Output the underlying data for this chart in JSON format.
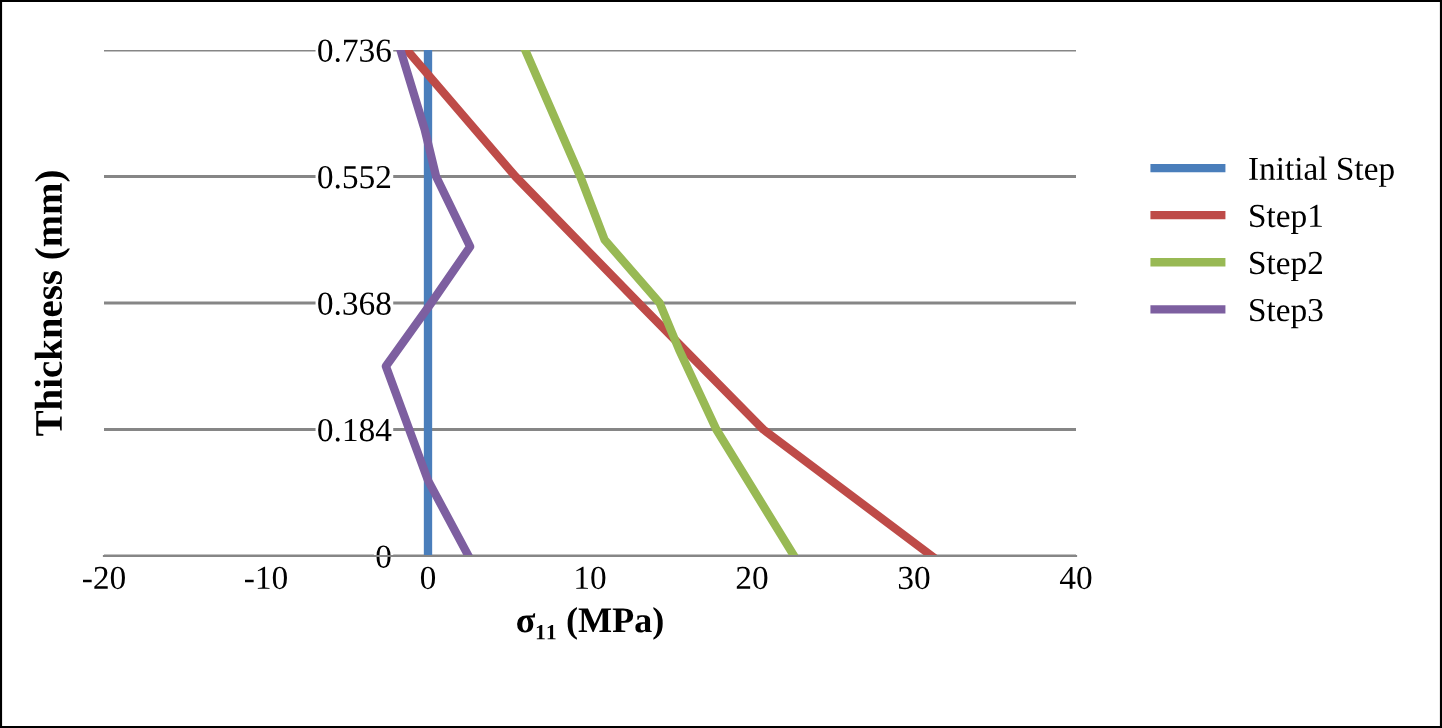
{
  "chart_data": {
    "type": "line",
    "xlabel": "σ₁₁ (MPa)",
    "ylabel": "Thickness (mm)",
    "xlim": [
      -20,
      40
    ],
    "xticks": [
      -20,
      -10,
      0,
      10,
      20,
      30,
      40
    ],
    "ylim": [
      0,
      0.736
    ],
    "yticks": [
      0,
      0.184,
      0.368,
      0.552,
      0.736
    ],
    "grid": "y",
    "legend": "right",
    "marker": "none",
    "line_style": "solid",
    "series": [
      {
        "name": "Initial Step",
        "color": "#4a7ebb",
        "x": [
          0,
          0,
          0,
          0,
          0
        ],
        "values": [
          0,
          0.184,
          0.368,
          0.552,
          0.736
        ]
      },
      {
        "name": "Step1",
        "color": "#be4b48",
        "x": [
          31.1,
          20.7,
          13,
          5.4,
          -1.3
        ],
        "values": [
          0,
          0.184,
          0.368,
          0.552,
          0.736
        ]
      },
      {
        "name": "Step2",
        "color": "#98b954",
        "x": [
          22.6,
          17.8,
          15.5,
          14.3,
          10.9,
          9.4,
          6
        ],
        "values": [
          0,
          0.184,
          0.3,
          0.368,
          0.46,
          0.552,
          0.736
        ]
      },
      {
        "name": "Step3",
        "color": "#7d5fa0",
        "x": [
          2.5,
          0,
          -2.6,
          0.2,
          2.6,
          0.5,
          -0.2,
          -1.7
        ],
        "values": [
          0,
          0.11,
          0.276,
          0.368,
          0.45,
          0.552,
          0.62,
          0.736
        ]
      }
    ]
  }
}
